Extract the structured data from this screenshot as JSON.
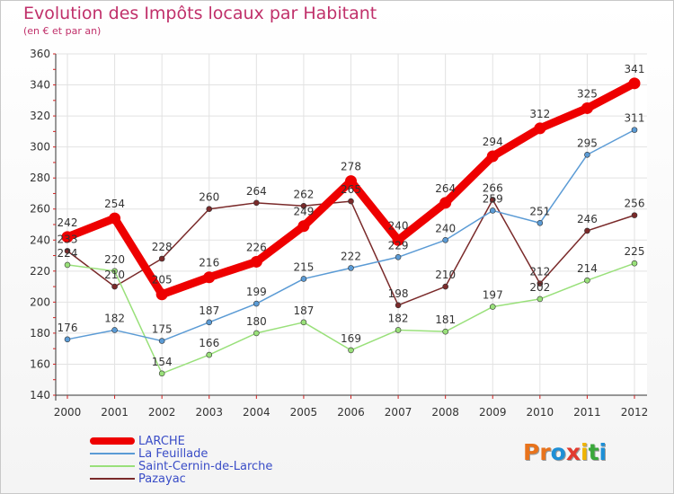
{
  "header": {
    "title": "Evolution des Impôts locaux par Habitant",
    "subtitle": "(en € et par an)"
  },
  "brand": {
    "name": "Proxiti",
    "letters": [
      "P",
      "r",
      "o",
      "x",
      "i",
      "t",
      "i"
    ],
    "colors": [
      "#e8731c",
      "#e8731c",
      "#1e8fd6",
      "#e23a2e",
      "#f0b400",
      "#3aa83a",
      "#1e8fd6"
    ]
  },
  "chart_data": {
    "type": "line",
    "title": "Evolution des Impôts locaux par Habitant",
    "subtitle": "(en € et par an)",
    "xlabel": "",
    "ylabel": "",
    "categories": [
      "2000",
      "2001",
      "2002",
      "2003",
      "2004",
      "2005",
      "2006",
      "2007",
      "2008",
      "2009",
      "2010",
      "2011",
      "2012"
    ],
    "ylim": [
      140,
      360
    ],
    "yticks": [
      "140",
      "160",
      "180",
      "200",
      "220",
      "240",
      "260",
      "280",
      "300",
      "320",
      "340",
      "360"
    ],
    "grid": true,
    "legend": "bottom-left",
    "series": [
      {
        "name": "LARCHE",
        "color": "#ee0000",
        "values": [
          242,
          254,
          205,
          216,
          226,
          249,
          278,
          240,
          264,
          294,
          312,
          325,
          341
        ],
        "labels": [
          "242",
          "254",
          "205",
          "216",
          "226",
          "249",
          "278",
          "240",
          "264",
          "294",
          "312",
          "325",
          "341"
        ]
      },
      {
        "name": "La Feuillade",
        "color": "#5b9bd5",
        "values": [
          176,
          182,
          175,
          187,
          199,
          215,
          222,
          229,
          240,
          259,
          251,
          295,
          311
        ],
        "labels": [
          "176",
          "182",
          "175",
          "187",
          "199",
          "215",
          "222",
          "229",
          "240",
          "259",
          "251",
          "295",
          "311"
        ]
      },
      {
        "name": "Saint-Cernin-de-Larche",
        "color": "#99e07a",
        "values": [
          224,
          220,
          154,
          166,
          180,
          187,
          169,
          182,
          181,
          197,
          202,
          214,
          225
        ],
        "labels": [
          "224",
          "220",
          "154",
          "166",
          "180",
          "187",
          "169",
          "182",
          "181",
          "197",
          "202",
          "214",
          "225"
        ]
      },
      {
        "name": "Pazayac",
        "color": "#7a2a2a",
        "values": [
          233,
          210,
          228,
          260,
          264,
          262,
          265,
          198,
          210,
          266,
          212,
          246,
          256
        ],
        "labels": [
          "233",
          "210",
          "228",
          "260",
          "264",
          "262",
          "265",
          "198",
          "210",
          "266",
          "212",
          "246",
          "256"
        ]
      }
    ]
  }
}
